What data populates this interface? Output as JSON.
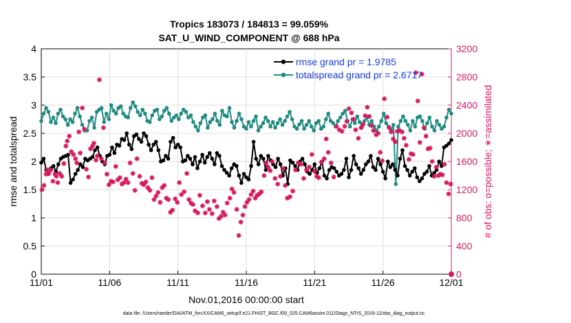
{
  "chart_data": {
    "type": "line",
    "title": "Tropics 183073 / 184813 = 99.059%",
    "subtitle": "SAT_U_WIND_COMPONENT @ 688 hPa",
    "xlabel": "Nov.01,2016 00:00:00 start",
    "ylabel": "rmse and totalspread",
    "y2label": "# of obs: o=possible; ∗=assimilated",
    "footer": "data file: /Users/raeder/DAI/ATM_forcXX/CAM6_setup/f.e21.FHIST_BGC.f09_025.CAM6assim.011/Diags_NTrS_2016-11/obs_diag_output.nc",
    "xlim": [
      0,
      30
    ],
    "ylim": [
      0,
      4
    ],
    "y2lim": [
      0,
      3200
    ],
    "x_ticks": [
      0,
      5,
      10,
      15,
      20,
      25,
      30
    ],
    "x_tick_labels": [
      "11/01",
      "11/06",
      "11/11",
      "11/16",
      "11/21",
      "11/26",
      "12/01"
    ],
    "y_ticks": [
      0,
      0.5,
      1,
      1.5,
      2,
      2.5,
      3,
      3.5,
      4
    ],
    "y_tick_labels": [
      "0",
      "0.5",
      "1",
      "1.5",
      "2",
      "2.5",
      "3",
      "3.5",
      "4"
    ],
    "y2_ticks": [
      0,
      400,
      800,
      1200,
      1600,
      2000,
      2400,
      2800,
      3200
    ],
    "y2_tick_labels": [
      "0",
      "400",
      "800",
      "1200",
      "1600",
      "2000",
      "2400",
      "2800",
      "3200"
    ],
    "legend_position": "top-right",
    "series": [
      {
        "name": "rmse grand pr = 1.9785",
        "color": "#000000",
        "axis": "left",
        "values": [
          1.98,
          2.05,
          1.85,
          1.78,
          1.88,
          1.92,
          1.82,
          1.95,
          2.05,
          2.08,
          2.1,
          2.12,
          1.62,
          1.68,
          1.78,
          1.85,
          1.95,
          1.9,
          2.05,
          2.02,
          2.05,
          2.08,
          2.2,
          2.25,
          2.1,
          2.0,
          1.95,
          2.1,
          2.12,
          2.25,
          2.15,
          2.3,
          2.28,
          2.4,
          2.38,
          2.5,
          2.3,
          2.22,
          2.45,
          2.48,
          2.4,
          2.35,
          2.5,
          2.45,
          2.3,
          2.2,
          2.3,
          2.35,
          2.2,
          2.0,
          2.02,
          2.1,
          2.05,
          2.35,
          2.42,
          2.25,
          2.3,
          2.25,
          2.0,
          2.02,
          2.1,
          2.05,
          1.95,
          2.08,
          1.88,
          2.0,
          2.12,
          1.98,
          2.08,
          2.15,
          2.05,
          1.95,
          2.15,
          2.1,
          1.92,
          1.85,
          1.8,
          1.75,
          1.88,
          1.95,
          1.92,
          1.75,
          1.62,
          1.78,
          1.72,
          1.68,
          1.92,
          2.35,
          2.05,
          1.95,
          2.1,
          2.05,
          1.85,
          2.1,
          2.02,
          1.95,
          1.9,
          2.05,
          1.95,
          1.75,
          1.88,
          1.6,
          2.02,
          1.98,
          1.92,
          1.85,
          2.0,
          2.05,
          1.95,
          1.82,
          1.78,
          1.85,
          1.95,
          1.8,
          1.88,
          2.0,
          1.75,
          1.7,
          1.85,
          1.9,
          1.88,
          1.82,
          1.75,
          1.78,
          1.85,
          2.05,
          1.72,
          1.85,
          2.1,
          1.95,
          1.88,
          1.78,
          1.85,
          1.95,
          2.0,
          2.1,
          1.9,
          1.85,
          2.05,
          1.95,
          1.82,
          1.7,
          2.0,
          1.9,
          1.95,
          1.85,
          1.75,
          2.05,
          2.2,
          1.92,
          1.85,
          1.75,
          1.82,
          1.88,
          1.72,
          1.65,
          1.7,
          1.78,
          1.82,
          1.92,
          1.75,
          1.8,
          1.85,
          2.0,
          1.92,
          2.25,
          2.28,
          2.32,
          2.38
        ]
      },
      {
        "name": "totalspread grand pr = 2.6717",
        "color": "#1f8a80",
        "axis": "left",
        "values": [
          2.72,
          2.85,
          2.95,
          2.88,
          2.7,
          2.78,
          2.68,
          2.85,
          2.92,
          2.8,
          2.75,
          2.65,
          2.75,
          2.7,
          2.85,
          2.95,
          2.8,
          2.65,
          2.55,
          2.55,
          2.72,
          2.78,
          2.6,
          2.88,
          2.92,
          2.95,
          2.7,
          2.85,
          2.75,
          3.0,
          2.9,
          2.85,
          2.95,
          2.98,
          2.85,
          2.8,
          2.78,
          2.95,
          3.05,
          2.98,
          2.88,
          2.82,
          2.92,
          2.85,
          2.72,
          2.7,
          2.82,
          2.9,
          2.92,
          2.75,
          2.8,
          2.9,
          2.95,
          2.85,
          2.72,
          2.78,
          2.82,
          2.75,
          2.85,
          2.92,
          2.88,
          2.78,
          2.82,
          2.7,
          2.62,
          2.55,
          2.68,
          2.78,
          2.82,
          2.6,
          2.7,
          2.75,
          2.85,
          2.72,
          2.65,
          2.9,
          2.82,
          2.8,
          2.95,
          2.7,
          2.6,
          2.72,
          2.85,
          2.75,
          2.62,
          2.58,
          2.7,
          2.62,
          2.72,
          2.8,
          2.55,
          2.62,
          2.68,
          2.78,
          2.72,
          2.62,
          2.7,
          2.6,
          2.68,
          2.75,
          2.65,
          2.72,
          2.8,
          2.88,
          2.75,
          2.62,
          2.58,
          2.66,
          2.72,
          2.58,
          2.65,
          2.72,
          2.62,
          2.55,
          2.68,
          2.72,
          2.58,
          2.62,
          2.75,
          2.85,
          2.72,
          2.68,
          2.62,
          2.72,
          2.78,
          2.85,
          2.9,
          2.72,
          2.62,
          2.75,
          2.68,
          2.8,
          2.7,
          2.62,
          2.72,
          2.78,
          2.65,
          2.72,
          2.62,
          2.55,
          2.62,
          2.72,
          2.85,
          2.68,
          2.62,
          2.55,
          2.65,
          1.6,
          2.62,
          2.72,
          2.8,
          2.72,
          2.65,
          2.55,
          2.72,
          2.62,
          2.78,
          2.8,
          2.72,
          2.58,
          2.68,
          2.78,
          2.62,
          2.55,
          2.72,
          2.65,
          2.58,
          2.62,
          2.78,
          2.92,
          2.85
        ]
      }
    ],
    "assimilated_obs": [
      [
        0.05,
        1200
      ],
      [
        0.2,
        1260
      ],
      [
        0.35,
        1420
      ],
      [
        0.45,
        1480
      ],
      [
        0.55,
        1430
      ],
      [
        0.7,
        1480
      ],
      [
        0.85,
        1320
      ],
      [
        1.0,
        1420
      ],
      [
        1.1,
        1390
      ],
      [
        1.2,
        1300
      ],
      [
        1.35,
        1430
      ],
      [
        1.5,
        1390
      ],
      [
        1.65,
        1570
      ],
      [
        1.8,
        1820
      ],
      [
        1.9,
        1890
      ],
      [
        2.05,
        1960
      ],
      [
        2.2,
        1740
      ],
      [
        2.35,
        1700
      ],
      [
        2.5,
        1640
      ],
      [
        2.6,
        1580
      ],
      [
        2.75,
        2020
      ],
      [
        2.85,
        1720
      ],
      [
        3.0,
        2360
      ],
      [
        3.15,
        2060
      ],
      [
        3.3,
        1490
      ],
      [
        3.45,
        1380
      ],
      [
        3.6,
        1780
      ],
      [
        3.75,
        1820
      ],
      [
        3.85,
        1860
      ],
      [
        4.0,
        1620
      ],
      [
        4.1,
        1680
      ],
      [
        4.25,
        2760
      ],
      [
        4.4,
        1640
      ],
      [
        4.55,
        2080
      ],
      [
        4.65,
        1580
      ],
      [
        4.8,
        1420
      ],
      [
        4.95,
        1270
      ],
      [
        5.1,
        1320
      ],
      [
        5.25,
        1310
      ],
      [
        5.45,
        1530
      ],
      [
        5.6,
        1340
      ],
      [
        5.75,
        1370
      ],
      [
        5.9,
        1280
      ],
      [
        6.05,
        1300
      ],
      [
        6.2,
        1350
      ],
      [
        6.35,
        1300
      ],
      [
        6.5,
        1580
      ],
      [
        6.7,
        1430
      ],
      [
        6.85,
        1190
      ],
      [
        7.0,
        1640
      ],
      [
        7.2,
        1390
      ],
      [
        7.35,
        1290
      ],
      [
        7.5,
        1270
      ],
      [
        7.65,
        1310
      ],
      [
        7.8,
        1230
      ],
      [
        7.95,
        1190
      ],
      [
        8.1,
        1370
      ],
      [
        8.25,
        1060
      ],
      [
        8.4,
        1110
      ],
      [
        8.55,
        1160
      ],
      [
        8.7,
        1020
      ],
      [
        8.85,
        1230
      ],
      [
        9.0,
        1260
      ],
      [
        9.15,
        1080
      ],
      [
        9.3,
        1060
      ],
      [
        9.45,
        880
      ],
      [
        9.6,
        910
      ],
      [
        9.8,
        1070
      ],
      [
        9.95,
        1020
      ],
      [
        10.1,
        1300
      ],
      [
        10.25,
        1130
      ],
      [
        10.45,
        1170
      ],
      [
        10.65,
        1430
      ],
      [
        10.8,
        1060
      ],
      [
        10.95,
        1010
      ],
      [
        11.1,
        990
      ],
      [
        11.25,
        900
      ],
      [
        11.45,
        870
      ],
      [
        11.6,
        1120
      ],
      [
        11.8,
        970
      ],
      [
        12.0,
        870
      ],
      [
        12.15,
        1030
      ],
      [
        12.3,
        920
      ],
      [
        12.5,
        860
      ],
      [
        12.65,
        1040
      ],
      [
        12.85,
        960
      ],
      [
        13.0,
        790
      ],
      [
        13.15,
        820
      ],
      [
        13.3,
        880
      ],
      [
        13.45,
        840
      ],
      [
        13.6,
        1010
      ],
      [
        13.8,
        1080
      ],
      [
        13.95,
        1210
      ],
      [
        14.1,
        1160
      ],
      [
        14.3,
        920
      ],
      [
        14.45,
        550
      ],
      [
        14.6,
        740
      ],
      [
        14.75,
        840
      ],
      [
        14.9,
        960
      ],
      [
        15.05,
        1020
      ],
      [
        15.2,
        1060
      ],
      [
        15.35,
        1130
      ],
      [
        15.5,
        1180
      ],
      [
        15.65,
        1080
      ],
      [
        15.8,
        1120
      ],
      [
        15.95,
        1140
      ],
      [
        16.1,
        1170
      ],
      [
        16.3,
        1400
      ],
      [
        16.45,
        1580
      ],
      [
        16.6,
        1520
      ],
      [
        16.75,
        1470
      ],
      [
        16.9,
        1600
      ],
      [
        17.1,
        1360
      ],
      [
        17.3,
        1280
      ],
      [
        17.5,
        1390
      ],
      [
        17.7,
        1500
      ],
      [
        17.85,
        1260
      ],
      [
        18.0,
        1080
      ],
      [
        18.2,
        1100
      ],
      [
        18.4,
        1180
      ],
      [
        18.6,
        1480
      ],
      [
        18.8,
        1580
      ],
      [
        19.0,
        1560
      ],
      [
        19.2,
        1360
      ],
      [
        19.4,
        1480
      ],
      [
        19.6,
        1520
      ],
      [
        19.8,
        1700
      ],
      [
        20.0,
        1460
      ],
      [
        20.15,
        1390
      ],
      [
        20.3,
        1370
      ],
      [
        20.5,
        1590
      ],
      [
        20.7,
        1640
      ],
      [
        20.85,
        1920
      ],
      [
        21.0,
        1730
      ],
      [
        21.2,
        1580
      ],
      [
        21.4,
        1380
      ],
      [
        21.6,
        2100
      ],
      [
        21.8,
        2050
      ],
      [
        22.0,
        2030
      ],
      [
        22.2,
        2100
      ],
      [
        22.35,
        2170
      ],
      [
        22.5,
        2350
      ],
      [
        22.7,
        2290
      ],
      [
        22.85,
        2200
      ],
      [
        23.0,
        2050
      ],
      [
        23.2,
        1930
      ],
      [
        23.4,
        2080
      ],
      [
        23.55,
        2130
      ],
      [
        23.7,
        2250
      ],
      [
        23.85,
        2370
      ],
      [
        24.0,
        2240
      ],
      [
        24.15,
        2110
      ],
      [
        24.3,
        2040
      ],
      [
        24.5,
        1980
      ],
      [
        24.65,
        2000
      ],
      [
        24.8,
        1730
      ],
      [
        24.95,
        1610
      ],
      [
        25.1,
        2490
      ],
      [
        25.3,
        2230
      ],
      [
        25.45,
        2080
      ],
      [
        25.6,
        2020
      ],
      [
        25.75,
        1920
      ],
      [
        25.9,
        1880
      ],
      [
        26.05,
        2030
      ],
      [
        26.2,
        2040
      ],
      [
        26.4,
        2020
      ],
      [
        26.55,
        1930
      ],
      [
        26.7,
        1830
      ],
      [
        26.9,
        1630
      ],
      [
        27.05,
        1710
      ],
      [
        27.2,
        1700
      ],
      [
        27.4,
        2860
      ],
      [
        27.55,
        2460
      ],
      [
        27.7,
        1870
      ],
      [
        27.85,
        2840
      ],
      [
        28.0,
        2080
      ],
      [
        28.15,
        1960
      ],
      [
        28.3,
        1780
      ],
      [
        28.45,
        1790
      ],
      [
        28.6,
        1600
      ],
      [
        28.75,
        1390
      ],
      [
        28.9,
        1520
      ],
      [
        29.05,
        1400
      ],
      [
        29.2,
        1420
      ],
      [
        29.35,
        1410
      ],
      [
        29.5,
        1560
      ],
      [
        29.65,
        1300
      ],
      [
        29.8,
        1140
      ],
      [
        29.95,
        1280
      ]
    ]
  }
}
